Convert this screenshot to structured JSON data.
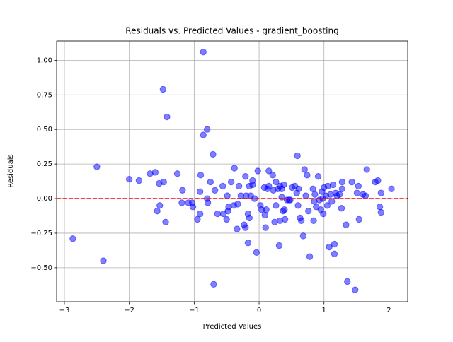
{
  "chart_data": {
    "type": "scatter",
    "title": "Residuals vs. Predicted Values - gradient_boosting",
    "x_label": "Predicted Values",
    "y_label": "Residuals",
    "color": "#0000ff",
    "grid": true,
    "reference_line": {
      "y": 0,
      "color": "#ff0000"
    },
    "xlim": [
      -3.12,
      2.29
    ],
    "ylim": [
      -0.746,
      1.14
    ],
    "xticks": [
      {
        "value": -3,
        "label": "−3"
      },
      {
        "value": -2,
        "label": "−2"
      },
      {
        "value": -1,
        "label": "−1"
      },
      0,
      1,
      2
    ],
    "yticks": [
      {
        "value": -0.5,
        "label": "−0.50"
      },
      {
        "value": -0.25,
        "label": "−0.25"
      },
      {
        "value": 0,
        "label": "0.00"
      },
      {
        "value": 0.25,
        "label": "0.25"
      },
      {
        "value": 0.5,
        "label": "0.50"
      },
      {
        "value": 0.75,
        "label": "0.75"
      },
      {
        "value": 1,
        "label": "1.00"
      }
    ],
    "x": [
      -2.87,
      -2.4,
      -2.5,
      -2.0,
      -1.85,
      -1.68,
      -1.6,
      -1.57,
      -1.53,
      -1.54,
      -1.47,
      -1.48,
      -1.42,
      -1.44,
      -1.26,
      -1.18,
      -1.19,
      -1.09,
      -1.03,
      -1.02,
      -0.95,
      -0.91,
      -0.91,
      -0.9,
      -0.86,
      -0.86,
      -0.8,
      -0.8,
      -0.79,
      -0.75,
      -0.71,
      -0.7,
      -0.68,
      -0.64,
      -0.56,
      -0.55,
      -0.5,
      -0.49,
      -0.48,
      -0.47,
      -0.43,
      -0.39,
      -0.38,
      -0.34,
      -0.33,
      -0.31,
      -0.28,
      -0.23,
      -0.21,
      -0.21,
      -0.2,
      -0.17,
      -0.17,
      -0.15,
      -0.15,
      -0.13,
      -0.1,
      -0.1,
      -0.07,
      -0.04,
      -0.02,
      0.02,
      0.04,
      0.08,
      0.09,
      0.1,
      0.11,
      0.13,
      0.15,
      0.15,
      0.21,
      0.22,
      0.24,
      0.26,
      0.26,
      0.29,
      0.31,
      0.32,
      0.32,
      0.35,
      0.35,
      0.37,
      0.38,
      0.39,
      0.4,
      0.43,
      0.46,
      0.48,
      0.51,
      0.55,
      0.58,
      0.59,
      0.6,
      0.61,
      0.63,
      0.65,
      0.68,
      0.7,
      0.72,
      0.74,
      0.76,
      0.78,
      0.83,
      0.84,
      0.85,
      0.86,
      0.88,
      0.91,
      0.93,
      0.95,
      0.97,
      0.98,
      0.99,
      1.0,
      1.03,
      1.05,
      1.06,
      1.08,
      1.1,
      1.12,
      1.14,
      1.16,
      1.16,
      1.18,
      1.2,
      1.24,
      1.27,
      1.28,
      1.28,
      1.34,
      1.36,
      1.43,
      1.48,
      1.51,
      1.53,
      1.54,
      1.6,
      1.64,
      1.66,
      1.79,
      1.83,
      1.86,
      1.88,
      1.88,
      2.04
    ],
    "y": [
      -0.29,
      -0.45,
      0.23,
      0.14,
      0.13,
      0.18,
      0.19,
      -0.09,
      -0.05,
      0.11,
      0.12,
      0.79,
      0.59,
      -0.17,
      0.18,
      0.06,
      -0.03,
      -0.03,
      -0.03,
      -0.06,
      -0.15,
      -0.11,
      0.05,
      0.17,
      1.06,
      0.46,
      0.5,
      0.0,
      -0.03,
      0.12,
      0.32,
      -0.62,
      0.06,
      -0.11,
      0.09,
      -0.11,
      -0.15,
      0.02,
      -0.09,
      -0.06,
      0.12,
      -0.05,
      0.22,
      -0.22,
      -0.04,
      0.09,
      0.02,
      -0.19,
      -0.21,
      0.16,
      0.02,
      -0.11,
      -0.32,
      -0.14,
      0.09,
      0.02,
      0.13,
      0.1,
      0.0,
      -0.39,
      0.2,
      -0.05,
      -0.08,
      0.08,
      -0.12,
      -0.21,
      -0.08,
      0.07,
      0.2,
      0.09,
      0.17,
      0.06,
      -0.17,
      -0.05,
      0.12,
      0.07,
      -0.34,
      0.09,
      -0.16,
      0.07,
      0.01,
      -0.09,
      0.1,
      -0.08,
      -0.15,
      -0.01,
      -0.01,
      -0.01,
      0.08,
      0.09,
      0.04,
      0.31,
      -0.05,
      0.07,
      -0.14,
      -0.16,
      -0.27,
      0.21,
      0.02,
      0.17,
      -0.09,
      -0.42,
      0.07,
      -0.16,
      -0.02,
      0.03,
      -0.06,
      0.16,
      -0.01,
      -0.08,
      0.05,
      0.0,
      -0.11,
      0.08,
      0.02,
      -0.05,
      0.09,
      -0.35,
      0.03,
      -0.02,
      0.1,
      -0.33,
      -0.4,
      0.04,
      0.02,
      0.03,
      -0.07,
      0.07,
      0.12,
      -0.19,
      -0.6,
      0.12,
      -0.66,
      0.04,
      0.09,
      -0.15,
      0.03,
      0.02,
      0.21,
      0.12,
      0.13,
      -0.06,
      0.04,
      -0.1,
      0.07
    ]
  }
}
